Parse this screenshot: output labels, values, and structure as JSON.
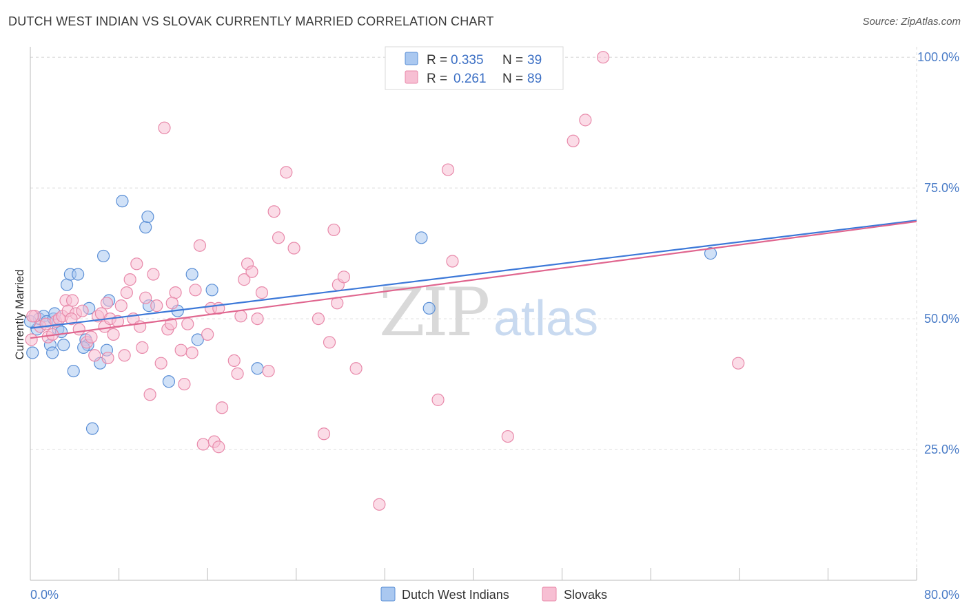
{
  "title": "DUTCH WEST INDIAN VS SLOVAK CURRENTLY MARRIED CORRELATION CHART",
  "source": "Source: ZipAtlas.com",
  "colors": {
    "blue_fill": "#aac8f0",
    "blue_stroke": "#5b8fd6",
    "blue_line": "#3c78d8",
    "pink_fill": "#f7bfd3",
    "pink_stroke": "#e889aa",
    "pink_line": "#e0668f",
    "grid": "#dddddd",
    "axis_text": "#4a7cc7"
  },
  "legend": {
    "rows": [
      {
        "r_label": "R =",
        "r_value": "0.335",
        "n_label": "N =",
        "n_value": "39"
      },
      {
        "r_label": "R =",
        "r_value": "0.261",
        "n_label": "N =",
        "n_value": "89"
      }
    ]
  },
  "watermark": {
    "zip": "ZIP",
    "atlas": "atlas"
  },
  "chart_data": {
    "type": "scatter",
    "title": "DUTCH WEST INDIAN VS SLOVAK CURRENTLY MARRIED CORRELATION CHART",
    "xlabel": "",
    "ylabel": "Currently Married",
    "xlim": [
      0,
      80
    ],
    "ylim": [
      0,
      102
    ],
    "x_tick_labels": [
      "0.0%",
      "80.0%"
    ],
    "y_ticks": [
      25,
      50,
      75,
      100
    ],
    "y_tick_labels": [
      "25.0%",
      "50.0%",
      "75.0%",
      "100.0%"
    ],
    "grid": true,
    "legend_position": "top-center",
    "series": [
      {
        "name": "Dutch West Indians",
        "color": "blue",
        "r": 0.335,
        "n": 39,
        "trend": {
          "x0": 0,
          "y0": 48.2,
          "x1": 80,
          "y1": 68.8
        },
        "points": [
          [
            0.2,
            43.5
          ],
          [
            0.6,
            48
          ],
          [
            0.8,
            50
          ],
          [
            1.2,
            50.5
          ],
          [
            1.5,
            49.5
          ],
          [
            1.8,
            45
          ],
          [
            2.0,
            43.5
          ],
          [
            2.1,
            50
          ],
          [
            2.2,
            51
          ],
          [
            2.5,
            48
          ],
          [
            2.8,
            47.5
          ],
          [
            3.0,
            45
          ],
          [
            3.3,
            56.5
          ],
          [
            3.6,
            58.5
          ],
          [
            3.9,
            40
          ],
          [
            4.3,
            58.5
          ],
          [
            5.0,
            46
          ],
          [
            5.2,
            45
          ],
          [
            5.3,
            52
          ],
          [
            5.6,
            29
          ],
          [
            6.3,
            41.5
          ],
          [
            6.6,
            62
          ],
          [
            6.9,
            44
          ],
          [
            7.1,
            53.5
          ],
          [
            8.3,
            72.5
          ],
          [
            10.4,
            67.5
          ],
          [
            10.6,
            69.5
          ],
          [
            12.5,
            38
          ],
          [
            13.3,
            51.5
          ],
          [
            14.6,
            58.5
          ],
          [
            15.1,
            46
          ],
          [
            16.4,
            55.5
          ],
          [
            20.5,
            40.5
          ],
          [
            35.3,
            65.5
          ],
          [
            36.0,
            52
          ],
          [
            61.4,
            62.5
          ],
          [
            0.0,
            49.5
          ],
          [
            4.8,
            44.5
          ],
          [
            10.7,
            52.5
          ]
        ]
      },
      {
        "name": "Slovaks",
        "color": "pink",
        "r": 0.261,
        "n": 89,
        "trend": {
          "x0": 0,
          "y0": 46.3,
          "x1": 80,
          "y1": 68.6
        },
        "points": [
          [
            0.1,
            46
          ],
          [
            0.4,
            50.5
          ],
          [
            0.9,
            48.5
          ],
          [
            1.4,
            49
          ],
          [
            1.6,
            46.5
          ],
          [
            2.3,
            49.5
          ],
          [
            2.6,
            50
          ],
          [
            2.9,
            50.5
          ],
          [
            3.2,
            53.5
          ],
          [
            3.4,
            51.5
          ],
          [
            3.8,
            53.5
          ],
          [
            4.1,
            51
          ],
          [
            4.4,
            48
          ],
          [
            4.7,
            51.5
          ],
          [
            5.1,
            45.5
          ],
          [
            5.5,
            46.5
          ],
          [
            5.8,
            43
          ],
          [
            6.1,
            50.5
          ],
          [
            6.4,
            51
          ],
          [
            6.7,
            48.5
          ],
          [
            7.0,
            42.5
          ],
          [
            7.2,
            50
          ],
          [
            7.5,
            47
          ],
          [
            7.9,
            49.5
          ],
          [
            8.2,
            52.5
          ],
          [
            8.5,
            43
          ],
          [
            8.7,
            55
          ],
          [
            9.0,
            57.5
          ],
          [
            9.3,
            50
          ],
          [
            9.6,
            60.5
          ],
          [
            9.9,
            48.5
          ],
          [
            10.1,
            44.5
          ],
          [
            10.4,
            54
          ],
          [
            10.8,
            35.5
          ],
          [
            11.1,
            58.5
          ],
          [
            11.4,
            52.5
          ],
          [
            11.8,
            41.5
          ],
          [
            12.1,
            86.5
          ],
          [
            12.4,
            48
          ],
          [
            12.7,
            49
          ],
          [
            13.1,
            55
          ],
          [
            13.6,
            44
          ],
          [
            13.9,
            37.5
          ],
          [
            14.2,
            49
          ],
          [
            14.6,
            43.5
          ],
          [
            14.9,
            55.5
          ],
          [
            15.3,
            64
          ],
          [
            15.6,
            26
          ],
          [
            16.0,
            47
          ],
          [
            16.3,
            52
          ],
          [
            16.6,
            26.5
          ],
          [
            17.0,
            25.5
          ],
          [
            17.3,
            33
          ],
          [
            18.4,
            42
          ],
          [
            18.7,
            39.5
          ],
          [
            19.0,
            50.5
          ],
          [
            19.3,
            57.5
          ],
          [
            19.6,
            60.5
          ],
          [
            20.0,
            59
          ],
          [
            20.5,
            50
          ],
          [
            20.9,
            55
          ],
          [
            21.5,
            40
          ],
          [
            22.0,
            70.5
          ],
          [
            22.4,
            65.5
          ],
          [
            23.1,
            78
          ],
          [
            23.8,
            63.5
          ],
          [
            26.0,
            50
          ],
          [
            26.5,
            28
          ],
          [
            27.0,
            45.5
          ],
          [
            27.4,
            67
          ],
          [
            27.8,
            56.5
          ],
          [
            28.3,
            58
          ],
          [
            29.4,
            40.5
          ],
          [
            31.5,
            14.5
          ],
          [
            36.8,
            34.5
          ],
          [
            37.7,
            78.5
          ],
          [
            38.1,
            61
          ],
          [
            43.1,
            27.5
          ],
          [
            49.0,
            84
          ],
          [
            50.1,
            88
          ],
          [
            51.7,
            100
          ],
          [
            63.9,
            41.5
          ],
          [
            0.2,
            50.5
          ],
          [
            2.0,
            47
          ],
          [
            3.7,
            50
          ],
          [
            6.9,
            53
          ],
          [
            12.8,
            53
          ],
          [
            17.0,
            52
          ],
          [
            27.7,
            53
          ]
        ]
      }
    ]
  }
}
